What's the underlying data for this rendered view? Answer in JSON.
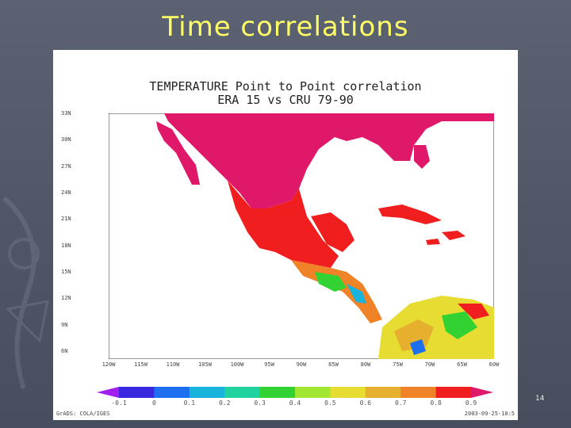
{
  "slide": {
    "title": "Time correlations",
    "page_number": "14"
  },
  "figure": {
    "title_line1": "TEMPERATURE Point to Point correlation",
    "title_line2": "ERA 15 vs CRU 79-90",
    "footer_left": "GrADS: COLA/IGES",
    "footer_right": "2003-09-25-10:5",
    "y_ticks": [
      "33N",
      "30N",
      "27N",
      "24N",
      "21N",
      "18N",
      "15N",
      "12N",
      "9N",
      "6N"
    ],
    "x_ticks": [
      "120W",
      "115W",
      "110W",
      "105W",
      "100W",
      "95W",
      "90W",
      "85W",
      "80W",
      "75W",
      "70W",
      "65W",
      "60W"
    ],
    "colorbar": {
      "labels": [
        "-0.1",
        "0",
        "0.1",
        "0.2",
        "0.3",
        "0.4",
        "0.5",
        "0.6",
        "0.7",
        "0.8",
        "0.9"
      ],
      "colors": [
        "#a020f0",
        "#3a28e0",
        "#1e6ef0",
        "#18b4dc",
        "#20d2a0",
        "#32d232",
        "#a0e632",
        "#e6dc32",
        "#e6af2d",
        "#f08228",
        "#f01e1e",
        "#e0186a"
      ]
    },
    "map_colors": {
      "high": "#e0186a",
      "red": "#f01e1e",
      "orange": "#f08228",
      "lightorange": "#e6af2d",
      "yellow": "#e6dc32",
      "green": "#32d232",
      "cyan": "#18b4dc",
      "blue": "#1e6ef0"
    }
  }
}
